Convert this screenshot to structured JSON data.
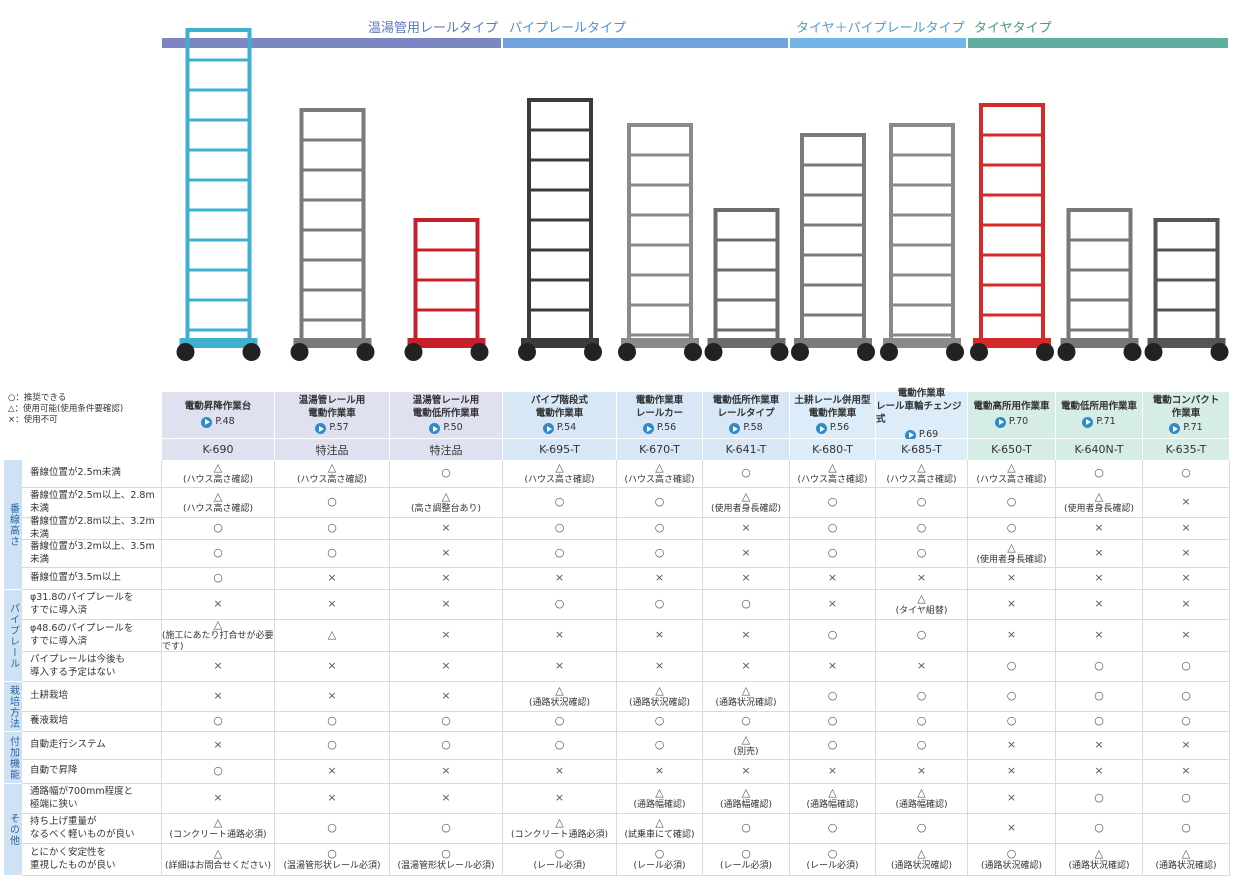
{
  "categories": [
    {
      "label": "温湯管用レールタイプ",
      "span": [
        0,
        2
      ]
    },
    {
      "label": "パイプレールタイプ",
      "span": [
        3,
        5
      ]
    },
    {
      "label": "タイヤ＋パイプレールタイプ",
      "span": [
        6,
        7
      ]
    },
    {
      "label": "タイヤタイプ",
      "span": [
        8,
        10
      ]
    }
  ],
  "legend": [
    "○：推奨できる",
    "△：使用可能(使用条件要確認)",
    "×：使用不可"
  ],
  "products": [
    {
      "name": [
        "電動昇降作業台"
      ],
      "page": "P.48",
      "code": "K-690"
    },
    {
      "name": [
        "温湯管レール用",
        "電動作業車"
      ],
      "page": "P.57",
      "code": "特注品"
    },
    {
      "name": [
        "温湯管レール用",
        "電動低所作業車"
      ],
      "page": "P.50",
      "code": "特注品"
    },
    {
      "name": [
        "パイプ階段式",
        "電動作業車"
      ],
      "page": "P.54",
      "code": "K-695-T"
    },
    {
      "name": [
        "電動作業車",
        "レールカー"
      ],
      "page": "P.56",
      "code": "K-670-T"
    },
    {
      "name": [
        "電動低所作業車",
        "レールタイプ"
      ],
      "page": "P.58",
      "code": "K-641-T"
    },
    {
      "name": [
        "土耕レール併用型",
        "電動作業車"
      ],
      "page": "P.56",
      "code": "K-680-T"
    },
    {
      "name": [
        "電動作業車",
        "レール車輪チェンジ式"
      ],
      "page": "P.69",
      "code": "K-685-T"
    },
    {
      "name": [
        "電動高所用作業車"
      ],
      "page": "P.70",
      "code": "K-650-T"
    },
    {
      "name": [
        "電動低所用作業車"
      ],
      "page": "P.71",
      "code": "K-640N-T"
    },
    {
      "name": [
        "電動コンパクト",
        "作業車"
      ],
      "page": "P.71",
      "code": "K-635-T"
    }
  ],
  "groups": [
    {
      "label": "番線高さ",
      "rows": [
        {
          "label": [
            "番線位置が2.5m未満"
          ],
          "cells": [
            [
              "△",
              "(ハウス高さ確認)"
            ],
            [
              "△",
              "(ハウス高さ確認)"
            ],
            [
              "○"
            ],
            [
              "△",
              "(ハウス高さ確認)"
            ],
            [
              "△",
              "(ハウス高さ確認)"
            ],
            [
              "○"
            ],
            [
              "△",
              "(ハウス高さ確認)"
            ],
            [
              "△",
              "(ハウス高さ確認)"
            ],
            [
              "△",
              "(ハウス高さ確認)"
            ],
            [
              "○"
            ],
            [
              "○"
            ]
          ]
        },
        {
          "label": [
            "番線位置が2.5m以上、2.8m未満"
          ],
          "cells": [
            [
              "△",
              "(ハウス高さ確認)"
            ],
            [
              "○"
            ],
            [
              "△",
              "(高さ調整台あり)"
            ],
            [
              "○"
            ],
            [
              "○"
            ],
            [
              "△",
              "(使用者身長確認)"
            ],
            [
              "○"
            ],
            [
              "○"
            ],
            [
              "○"
            ],
            [
              "△",
              "(使用者身長確認)"
            ],
            [
              "×"
            ]
          ]
        },
        {
          "label": [
            "番線位置が2.8m以上、3.2m未満"
          ],
          "cells": [
            [
              "○"
            ],
            [
              "○"
            ],
            [
              "×"
            ],
            [
              "○"
            ],
            [
              "○"
            ],
            [
              "×"
            ],
            [
              "○"
            ],
            [
              "○"
            ],
            [
              "○"
            ],
            [
              "×"
            ],
            [
              "×"
            ]
          ]
        },
        {
          "label": [
            "番線位置が3.2m以上、3.5m未満"
          ],
          "cells": [
            [
              "○"
            ],
            [
              "○"
            ],
            [
              "×"
            ],
            [
              "○"
            ],
            [
              "○"
            ],
            [
              "×"
            ],
            [
              "○"
            ],
            [
              "○"
            ],
            [
              "△",
              "(使用者身長確認)"
            ],
            [
              "×"
            ],
            [
              "×"
            ]
          ]
        },
        {
          "label": [
            "番線位置が3.5m以上"
          ],
          "cells": [
            [
              "○"
            ],
            [
              "×"
            ],
            [
              "×"
            ],
            [
              "×"
            ],
            [
              "×"
            ],
            [
              "×"
            ],
            [
              "×"
            ],
            [
              "×"
            ],
            [
              "×"
            ],
            [
              "×"
            ],
            [
              "×"
            ]
          ]
        }
      ]
    },
    {
      "label": "パイプレール",
      "rows": [
        {
          "label": [
            "φ31.8のパイプレールを",
            "すでに導入済"
          ],
          "cells": [
            [
              "×"
            ],
            [
              "×"
            ],
            [
              "×"
            ],
            [
              "○"
            ],
            [
              "○"
            ],
            [
              "○"
            ],
            [
              "×"
            ],
            [
              "△",
              "(タイヤ組替)"
            ],
            [
              "×"
            ],
            [
              "×"
            ],
            [
              "×"
            ]
          ]
        },
        {
          "label": [
            "φ48.6のパイプレールを",
            "すでに導入済"
          ],
          "cells": [
            [
              "△",
              "(施工にあたり打合せが必要です)"
            ],
            [
              "△"
            ],
            [
              "×"
            ],
            [
              "×"
            ],
            [
              "×"
            ],
            [
              "×"
            ],
            [
              "○"
            ],
            [
              "○"
            ],
            [
              "×"
            ],
            [
              "×"
            ],
            [
              "×"
            ]
          ]
        },
        {
          "label": [
            "パイプレールは今後も",
            "導入する予定はない"
          ],
          "cells": [
            [
              "×"
            ],
            [
              "×"
            ],
            [
              "×"
            ],
            [
              "×"
            ],
            [
              "×"
            ],
            [
              "×"
            ],
            [
              "×"
            ],
            [
              "×"
            ],
            [
              "○"
            ],
            [
              "○"
            ],
            [
              "○"
            ]
          ]
        }
      ]
    },
    {
      "label": "栽培方法",
      "rows": [
        {
          "label": [
            "土耕栽培"
          ],
          "cells": [
            [
              "×"
            ],
            [
              "×"
            ],
            [
              "×"
            ],
            [
              "△",
              "(通路状況確認)"
            ],
            [
              "△",
              "(通路状況確認)"
            ],
            [
              "△",
              "(通路状況確認)"
            ],
            [
              "○"
            ],
            [
              "○"
            ],
            [
              "○"
            ],
            [
              "○"
            ],
            [
              "○"
            ]
          ]
        },
        {
          "label": [
            "養液栽培"
          ],
          "cells": [
            [
              "○"
            ],
            [
              "○"
            ],
            [
              "○"
            ],
            [
              "○"
            ],
            [
              "○"
            ],
            [
              "○"
            ],
            [
              "○"
            ],
            [
              "○"
            ],
            [
              "○"
            ],
            [
              "○"
            ],
            [
              "○"
            ]
          ]
        }
      ]
    },
    {
      "label": "付加機能",
      "rows": [
        {
          "label": [
            "自動走行システム"
          ],
          "cells": [
            [
              "×"
            ],
            [
              "○"
            ],
            [
              "○"
            ],
            [
              "○"
            ],
            [
              "○"
            ],
            [
              "△",
              "(別売)"
            ],
            [
              "○"
            ],
            [
              "○"
            ],
            [
              "×"
            ],
            [
              "×"
            ],
            [
              "×"
            ]
          ]
        },
        {
          "label": [
            "自動で昇降"
          ],
          "cells": [
            [
              "○"
            ],
            [
              "×"
            ],
            [
              "×"
            ],
            [
              "×"
            ],
            [
              "×"
            ],
            [
              "×"
            ],
            [
              "×"
            ],
            [
              "×"
            ],
            [
              "×"
            ],
            [
              "×"
            ],
            [
              "×"
            ]
          ]
        }
      ]
    },
    {
      "label": "その他",
      "rows": [
        {
          "label": [
            "通路幅が700mm程度と",
            "極端に狭い"
          ],
          "cells": [
            [
              "×"
            ],
            [
              "×"
            ],
            [
              "×"
            ],
            [
              "×"
            ],
            [
              "△",
              "(通路幅確認)"
            ],
            [
              "△",
              "(通路幅確認)"
            ],
            [
              "△",
              "(通路幅確認)"
            ],
            [
              "△",
              "(通路幅確認)"
            ],
            [
              "×"
            ],
            [
              "○"
            ],
            [
              "○"
            ]
          ]
        },
        {
          "label": [
            "持ち上げ重量が",
            "なるべく軽いものが良い"
          ],
          "cells": [
            [
              "△",
              "(コンクリート通路必須)"
            ],
            [
              "○"
            ],
            [
              "○"
            ],
            [
              "△",
              "(コンクリート通路必須)"
            ],
            [
              "△",
              "(試乗車にて確認)"
            ],
            [
              "○"
            ],
            [
              "○"
            ],
            [
              "○"
            ],
            [
              "×"
            ],
            [
              "○"
            ],
            [
              "○"
            ]
          ]
        },
        {
          "label": [
            "とにかく安定性を",
            "重視したものが良い"
          ],
          "cells": [
            [
              "△",
              "(詳細はお問合せください)"
            ],
            [
              "○",
              "(温湯管形状レール必須)"
            ],
            [
              "○",
              "(温湯管形状レール必須)"
            ],
            [
              "○",
              "(レール必須)"
            ],
            [
              "○",
              "(レール必須)"
            ],
            [
              "○",
              "(レール必須)"
            ],
            [
              "○",
              "(レール必須)"
            ],
            [
              "△",
              "(通路状況確認)"
            ],
            [
              "○",
              "(通路状況確認)"
            ],
            [
              "△",
              "(通路状況確認)"
            ],
            [
              "△",
              "(通路状況確認)"
            ]
          ]
        }
      ]
    }
  ]
}
